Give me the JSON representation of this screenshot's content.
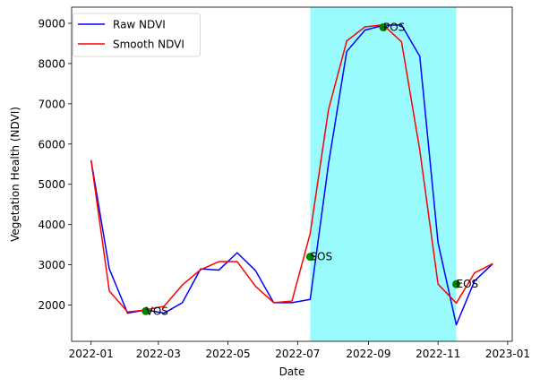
{
  "chart_data": {
    "type": "line",
    "xlabel": "Date",
    "ylabel": "Vegetation Health (NDVI)",
    "x_type": "date",
    "xlim": [
      "2021-12-15",
      "2023-01-05"
    ],
    "ylim": [
      1100,
      9400
    ],
    "x_ticks": [
      "2022-01-01",
      "2022-03-01",
      "2022-05-01",
      "2022-07-01",
      "2022-09-01",
      "2022-11-01",
      "2023-01-01"
    ],
    "x_tick_labels": [
      "2022-01",
      "2022-03",
      "2022-05",
      "2022-07",
      "2022-09",
      "2022-11",
      "2023-01"
    ],
    "y_ticks": [
      2000,
      3000,
      4000,
      5000,
      6000,
      7000,
      8000,
      9000
    ],
    "y_tick_labels": [
      "2000",
      "3000",
      "4000",
      "5000",
      "6000",
      "7000",
      "8000",
      "9000"
    ],
    "grid": false,
    "legend_position": "top-left",
    "series": [
      {
        "name": "Raw NDVI",
        "color": "#0000ff",
        "x": [
          "2022-01-01",
          "2022-01-17",
          "2022-02-02",
          "2022-02-18",
          "2022-03-06",
          "2022-03-22",
          "2022-04-07",
          "2022-04-23",
          "2022-05-09",
          "2022-05-25",
          "2022-06-10",
          "2022-06-26",
          "2022-07-12",
          "2022-07-28",
          "2022-08-13",
          "2022-08-29",
          "2022-09-14",
          "2022-09-30",
          "2022-10-16",
          "2022-11-01",
          "2022-11-17",
          "2022-12-03",
          "2022-12-19"
        ],
        "y": [
          5600,
          2900,
          1800,
          1880,
          1800,
          2060,
          2900,
          2870,
          3300,
          2860,
          2060,
          2060,
          2140,
          5500,
          8300,
          8830,
          8950,
          8960,
          8180,
          3550,
          1510,
          2600,
          3030
        ]
      },
      {
        "name": "Smooth NDVI",
        "color": "#ff0000",
        "x": [
          "2022-01-01",
          "2022-01-17",
          "2022-02-02",
          "2022-02-18",
          "2022-03-06",
          "2022-03-22",
          "2022-04-07",
          "2022-04-23",
          "2022-05-09",
          "2022-05-25",
          "2022-06-10",
          "2022-06-26",
          "2022-07-12",
          "2022-07-28",
          "2022-08-13",
          "2022-08-29",
          "2022-09-14",
          "2022-09-30",
          "2022-10-16",
          "2022-11-01",
          "2022-11-17",
          "2022-12-03",
          "2022-12-19"
        ],
        "y": [
          5600,
          2350,
          1830,
          1880,
          1970,
          2500,
          2880,
          3080,
          3080,
          2470,
          2060,
          2100,
          3780,
          6850,
          8560,
          8910,
          8960,
          8540,
          5850,
          2520,
          2050,
          2800,
          3030
        ]
      }
    ],
    "annotations": [
      {
        "label": "VOS",
        "x": "2022-02-18",
        "y": 1850
      },
      {
        "label": "SOS",
        "x": "2022-07-12",
        "y": 3200
      },
      {
        "label": "POS",
        "x": "2022-09-14",
        "y": 8900
      },
      {
        "label": "EOS",
        "x": "2022-11-17",
        "y": 2520
      }
    ],
    "marker_color": "#008000",
    "season_span": {
      "start": "2022-07-12",
      "end": "2022-11-17",
      "color": "#99fbfd"
    }
  }
}
